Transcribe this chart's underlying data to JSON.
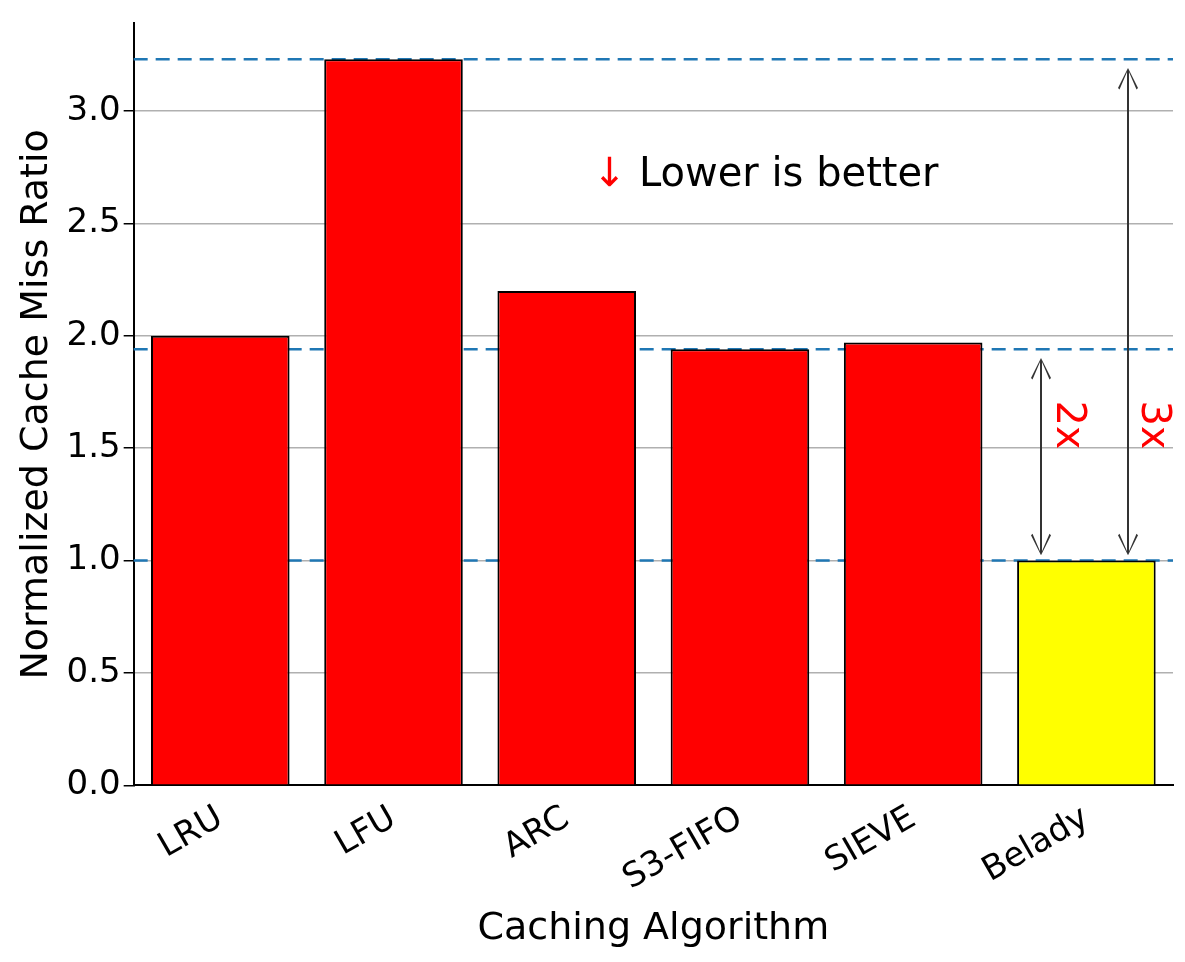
{
  "chart_data": {
    "type": "bar",
    "xlabel": "Caching Algorithm",
    "ylabel": "Normalized Cache Miss Ratio",
    "categories": [
      "LRU",
      "LFU",
      "ARC",
      "S3-FIFO",
      "SIEVE",
      "Belady"
    ],
    "values": [
      2.0,
      3.23,
      2.2,
      1.94,
      1.97,
      1.0
    ],
    "colors": [
      "#ff0000",
      "#ff0000",
      "#ff0000",
      "#ff0000",
      "#ff0000",
      "#ffff00"
    ],
    "ylim": [
      0,
      3.39
    ],
    "yticks": [
      {
        "value": 0,
        "label": "0.0"
      },
      {
        "value": 0.5,
        "label": "0.5"
      },
      {
        "value": 1,
        "label": "1.0"
      },
      {
        "value": 1.5,
        "label": "1.5"
      },
      {
        "value": 2,
        "label": "2.0"
      },
      {
        "value": 2.5,
        "label": "2.5"
      },
      {
        "value": 3,
        "label": "3.0"
      }
    ],
    "grid": "y",
    "ref_lines": [
      {
        "axis": "y",
        "value": 3.23,
        "color": "#1f77b4",
        "line_style": "dashed"
      },
      {
        "axis": "y",
        "value": 1.94,
        "color": "#1f77b4",
        "line_style": "dashed"
      },
      {
        "axis": "y",
        "value": 1.0,
        "color": "#1f77b4",
        "line_style": "dashed"
      }
    ],
    "annotations": [
      "↓ Lower is better",
      "2x",
      "3x"
    ]
  }
}
